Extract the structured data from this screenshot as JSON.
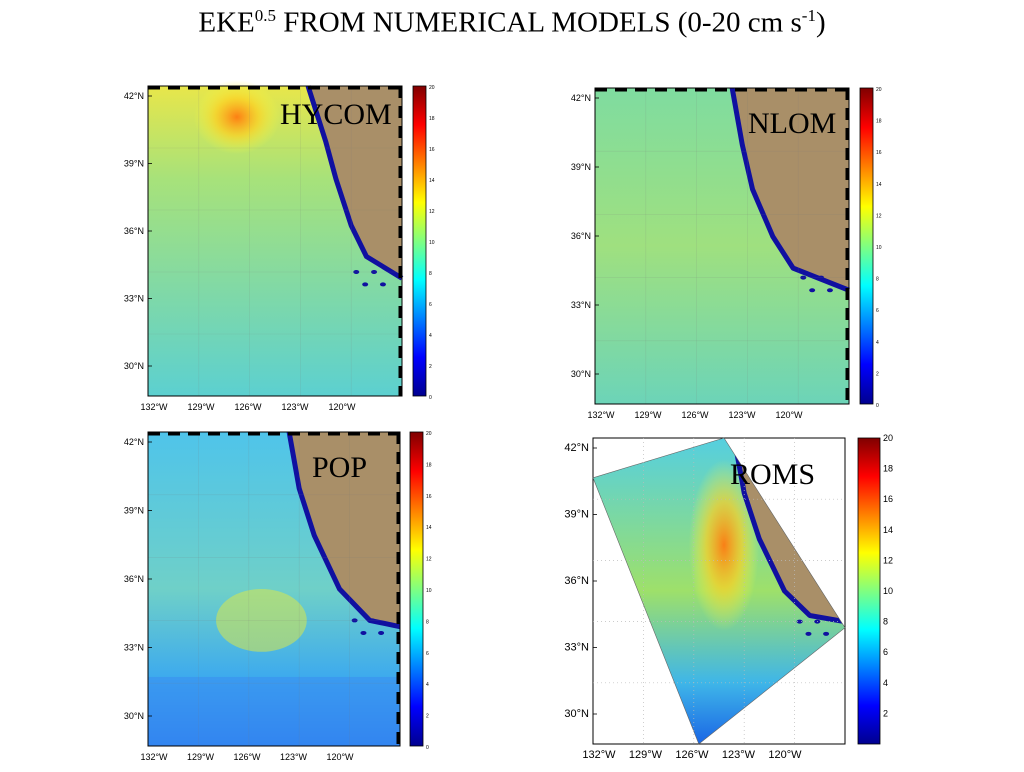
{
  "title": {
    "main": "EKE",
    "exponent": "0.5",
    "rest": " FROM NUMERICAL MODELS (0-20 cm s",
    "unit_exp": "-1",
    "close": ")"
  },
  "axes": {
    "lat_labels": [
      "42°N",
      "39°N",
      "36°N",
      "33°N",
      "30°N"
    ],
    "lon_labels": [
      "132°W",
      "129°W",
      "126°W",
      "123°W",
      "120°W"
    ]
  },
  "colorbar": {
    "small_ticks": [
      "20",
      "18",
      "16",
      "14",
      "12",
      "10",
      "8",
      "6",
      "4",
      "2",
      "0"
    ],
    "roms_ticks": [
      "20",
      "18",
      "16",
      "14",
      "12",
      "10",
      "8",
      "6",
      "4",
      "2"
    ],
    "colors": [
      "#00008f",
      "#0000ff",
      "#0080ff",
      "#00ffff",
      "#80ff80",
      "#ffff00",
      "#ff8000",
      "#ff0000",
      "#800000"
    ]
  },
  "panels": [
    {
      "id": "hycom",
      "label": "HYCOM"
    },
    {
      "id": "nlom",
      "label": "NLOM"
    },
    {
      "id": "pop",
      "label": "POP"
    },
    {
      "id": "roms",
      "label": "ROMS"
    }
  ],
  "colors": {
    "land": "#a98f68",
    "coast": "#1010a0"
  }
}
